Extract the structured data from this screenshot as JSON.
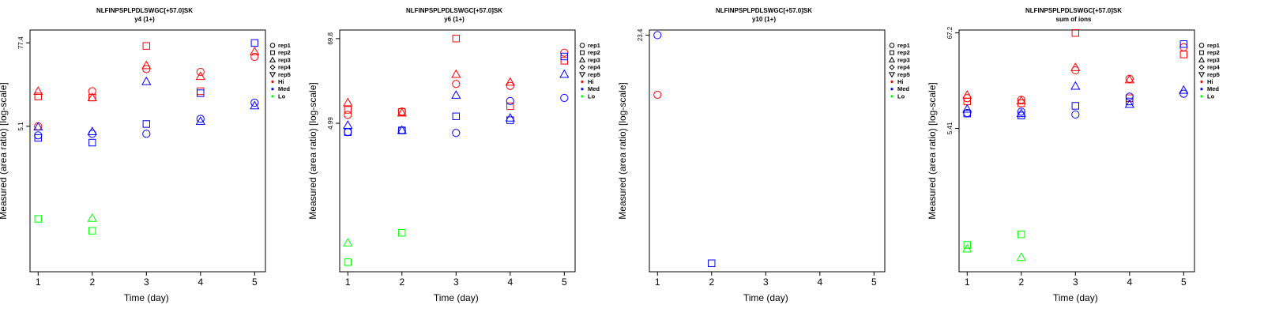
{
  "chart_data": [
    {
      "type": "scatter",
      "title": "NLFINPSPLPDLSWGC[+57.0]SK",
      "subtitle": "y4 (1+)",
      "xlabel": "Time (day)",
      "ylabel": "Measured (area ratio) [log-scale]",
      "xticks": [
        "1",
        "2",
        "3",
        "4",
        "5"
      ],
      "yticks": [
        "5.1",
        "77.4"
      ],
      "ylim_log10": [
        -1.35,
        2.07
      ],
      "grid": false,
      "legend_position": "right",
      "legend": [
        {
          "label": "rep1",
          "marker": "circle"
        },
        {
          "label": "rep2",
          "marker": "square"
        },
        {
          "label": "rep3",
          "marker": "triangle"
        },
        {
          "label": "rep4",
          "marker": "diamond"
        },
        {
          "label": "rep5",
          "marker": "triangle-down"
        },
        {
          "label": "Hi",
          "marker": "dot",
          "color": "#ff0000"
        },
        {
          "label": "Med",
          "marker": "dot",
          "color": "#0000ff"
        },
        {
          "label": "Lo",
          "marker": "dot",
          "color": "#00cc00"
        }
      ],
      "points": [
        {
          "x": 1,
          "y": 5.1,
          "group": "Hi",
          "rep": "rep1"
        },
        {
          "x": 1,
          "y": 13.5,
          "group": "Hi",
          "rep": "rep2"
        },
        {
          "x": 1,
          "y": 16,
          "group": "Hi",
          "rep": "rep3"
        },
        {
          "x": 1,
          "y": 3.8,
          "group": "Med",
          "rep": "rep1"
        },
        {
          "x": 1,
          "y": 3.5,
          "group": "Med",
          "rep": "rep2"
        },
        {
          "x": 1,
          "y": 5.0,
          "group": "Med",
          "rep": "rep3"
        },
        {
          "x": 1,
          "y": 0.25,
          "group": "Lo",
          "rep": "rep2"
        },
        {
          "x": 2,
          "y": 16,
          "group": "Hi",
          "rep": "rep1"
        },
        {
          "x": 2,
          "y": 13,
          "group": "Hi",
          "rep": "rep2"
        },
        {
          "x": 2,
          "y": 13,
          "group": "Hi",
          "rep": "rep3"
        },
        {
          "x": 2,
          "y": 4.0,
          "group": "Med",
          "rep": "rep1"
        },
        {
          "x": 2,
          "y": 3.0,
          "group": "Med",
          "rep": "rep2"
        },
        {
          "x": 2,
          "y": 4.3,
          "group": "Med",
          "rep": "rep3"
        },
        {
          "x": 2,
          "y": 0.17,
          "group": "Lo",
          "rep": "rep2"
        },
        {
          "x": 2,
          "y": 0.255,
          "group": "Lo",
          "rep": "rep3"
        },
        {
          "x": 3,
          "y": 33,
          "group": "Hi",
          "rep": "rep1"
        },
        {
          "x": 3,
          "y": 70,
          "group": "Hi",
          "rep": "rep2"
        },
        {
          "x": 3,
          "y": 37,
          "group": "Hi",
          "rep": "rep3"
        },
        {
          "x": 3,
          "y": 4.0,
          "group": "Med",
          "rep": "rep1"
        },
        {
          "x": 3,
          "y": 5.5,
          "group": "Med",
          "rep": "rep2"
        },
        {
          "x": 3,
          "y": 22,
          "group": "Med",
          "rep": "rep3"
        },
        {
          "x": 4,
          "y": 30,
          "group": "Hi",
          "rep": "rep1"
        },
        {
          "x": 4,
          "y": 16,
          "group": "Hi",
          "rep": "rep2"
        },
        {
          "x": 4,
          "y": 26,
          "group": "Hi",
          "rep": "rep3"
        },
        {
          "x": 4,
          "y": 6.5,
          "group": "Med",
          "rep": "rep1"
        },
        {
          "x": 4,
          "y": 15,
          "group": "Med",
          "rep": "rep2"
        },
        {
          "x": 4,
          "y": 6,
          "group": "Med",
          "rep": "rep3"
        },
        {
          "x": 5,
          "y": 49,
          "group": "Hi",
          "rep": "rep1"
        },
        {
          "x": 5,
          "y": 58,
          "group": "Hi",
          "rep": "rep3"
        },
        {
          "x": 5,
          "y": 11,
          "group": "Med",
          "rep": "rep1"
        },
        {
          "x": 5,
          "y": 77,
          "group": "Med",
          "rep": "rep2"
        },
        {
          "x": 5,
          "y": 10,
          "group": "Med",
          "rep": "rep3"
        }
      ]
    },
    {
      "type": "scatter",
      "title": "NLFINPSPLPDLSWGC[+57.0]SK",
      "subtitle": "y6 (1+)",
      "xlabel": "Time (day)",
      "ylabel": "Measured (area ratio) [log-scale]",
      "xticks": [
        "1",
        "2",
        "3",
        "4",
        "5"
      ],
      "yticks": [
        "4.99",
        "69.8"
      ],
      "ylim_log10": [
        -1.31,
        1.96
      ],
      "grid": false,
      "legend_position": "right",
      "legend": [
        {
          "label": "rep1",
          "marker": "circle"
        },
        {
          "label": "rep2",
          "marker": "square"
        },
        {
          "label": "rep3",
          "marker": "triangle"
        },
        {
          "label": "rep4",
          "marker": "diamond"
        },
        {
          "label": "rep5",
          "marker": "triangle-down"
        },
        {
          "label": "Hi",
          "marker": "dot",
          "color": "#ff0000"
        },
        {
          "label": "Med",
          "marker": "dot",
          "color": "#0000ff"
        },
        {
          "label": "Lo",
          "marker": "dot",
          "color": "#00cc00"
        }
      ],
      "points": [
        {
          "x": 1,
          "y": 6.5,
          "group": "Hi",
          "rep": "rep1"
        },
        {
          "x": 1,
          "y": 7.6,
          "group": "Hi",
          "rep": "rep2"
        },
        {
          "x": 1,
          "y": 9.5,
          "group": "Hi",
          "rep": "rep3"
        },
        {
          "x": 1,
          "y": 3.8,
          "group": "Med",
          "rep": "rep1"
        },
        {
          "x": 1,
          "y": 3.8,
          "group": "Med",
          "rep": "rep2"
        },
        {
          "x": 1,
          "y": 4.7,
          "group": "Med",
          "rep": "rep3"
        },
        {
          "x": 1,
          "y": 0.066,
          "group": "Lo",
          "rep": "rep2"
        },
        {
          "x": 1,
          "y": 0.12,
          "group": "Lo",
          "rep": "rep3"
        },
        {
          "x": 2,
          "y": 7.2,
          "group": "Hi",
          "rep": "rep1"
        },
        {
          "x": 2,
          "y": 7.1,
          "group": "Hi",
          "rep": "rep2"
        },
        {
          "x": 2,
          "y": 6.9,
          "group": "Hi",
          "rep": "rep3"
        },
        {
          "x": 2,
          "y": 4.0,
          "group": "Med",
          "rep": "rep1"
        },
        {
          "x": 2,
          "y": 4.0,
          "group": "Med",
          "rep": "rep2"
        },
        {
          "x": 2,
          "y": 4.0,
          "group": "Med",
          "rep": "rep3"
        },
        {
          "x": 2,
          "y": 0.165,
          "group": "Lo",
          "rep": "rep2"
        },
        {
          "x": 3,
          "y": 17,
          "group": "Hi",
          "rep": "rep1"
        },
        {
          "x": 3,
          "y": 70,
          "group": "Hi",
          "rep": "rep2"
        },
        {
          "x": 3,
          "y": 23,
          "group": "Hi",
          "rep": "rep3"
        },
        {
          "x": 3,
          "y": 3.7,
          "group": "Med",
          "rep": "rep1"
        },
        {
          "x": 3,
          "y": 6.2,
          "group": "Med",
          "rep": "rep2"
        },
        {
          "x": 3,
          "y": 12,
          "group": "Med",
          "rep": "rep3"
        },
        {
          "x": 4,
          "y": 16,
          "group": "Hi",
          "rep": "rep1"
        },
        {
          "x": 4,
          "y": 8.5,
          "group": "Hi",
          "rep": "rep2"
        },
        {
          "x": 4,
          "y": 18,
          "group": "Hi",
          "rep": "rep3"
        },
        {
          "x": 4,
          "y": 10,
          "group": "Med",
          "rep": "rep1"
        },
        {
          "x": 4,
          "y": 5.5,
          "group": "Med",
          "rep": "rep2"
        },
        {
          "x": 4,
          "y": 5.9,
          "group": "Med",
          "rep": "rep3"
        },
        {
          "x": 5,
          "y": 45,
          "group": "Hi",
          "rep": "rep1"
        },
        {
          "x": 5,
          "y": 35,
          "group": "Hi",
          "rep": "rep2"
        },
        {
          "x": 5,
          "y": 11,
          "group": "Med",
          "rep": "rep1"
        },
        {
          "x": 5,
          "y": 40,
          "group": "Med",
          "rep": "rep2"
        },
        {
          "x": 5,
          "y": 23,
          "group": "Med",
          "rep": "rep3"
        }
      ]
    },
    {
      "type": "scatter",
      "title": "NLFINPSPLPDLSWGC[+57.0]SK",
      "subtitle": "y10 (1+)",
      "xlabel": "Time (day)",
      "ylabel": "Measured (area ratio) [log-scale]",
      "xticks": [
        "1",
        "2",
        "3",
        "4",
        "5"
      ],
      "yticks": [
        "23.4"
      ],
      "ylim_log10": [
        -0.06,
        1.4
      ],
      "grid": false,
      "legend_position": "right",
      "legend": [
        {
          "label": "rep1",
          "marker": "circle"
        },
        {
          "label": "rep2",
          "marker": "square"
        },
        {
          "label": "rep3",
          "marker": "triangle"
        },
        {
          "label": "rep4",
          "marker": "diamond"
        },
        {
          "label": "rep5",
          "marker": "triangle-down"
        },
        {
          "label": "Hi",
          "marker": "dot",
          "color": "#ff0000"
        },
        {
          "label": "Med",
          "marker": "dot",
          "color": "#0000ff"
        },
        {
          "label": "Lo",
          "marker": "dot",
          "color": "#00cc00"
        }
      ],
      "points": [
        {
          "x": 1,
          "y": 23.4,
          "group": "Med",
          "rep": "rep1"
        },
        {
          "x": 1,
          "y": 10.2,
          "group": "Hi",
          "rep": "rep1"
        },
        {
          "x": 2,
          "y": 0.98,
          "group": "Med",
          "rep": "rep2"
        }
      ]
    },
    {
      "type": "scatter",
      "title": "NLFINPSPLPDLSWGC[+57.0]SK",
      "subtitle": "sum of ions",
      "xlabel": "Time (day)",
      "ylabel": "Measured (area ratio) [log-scale]",
      "xticks": [
        "1",
        "2",
        "3",
        "4",
        "5"
      ],
      "yticks": [
        "5.41",
        "67.2"
      ],
      "ylim_log10": [
        -0.91,
        1.86
      ],
      "grid": false,
      "legend_position": "right",
      "legend": [
        {
          "label": "rep1",
          "marker": "circle"
        },
        {
          "label": "rep2",
          "marker": "square"
        },
        {
          "label": "rep3",
          "marker": "triangle"
        },
        {
          "label": "rep4",
          "marker": "diamond"
        },
        {
          "label": "rep5",
          "marker": "triangle-down"
        },
        {
          "label": "Hi",
          "marker": "dot",
          "color": "#ff0000"
        },
        {
          "label": "Med",
          "marker": "dot",
          "color": "#0000ff"
        },
        {
          "label": "Lo",
          "marker": "dot",
          "color": "#00cc00"
        }
      ],
      "points": [
        {
          "x": 1,
          "y": 12,
          "group": "Hi",
          "rep": "rep1"
        },
        {
          "x": 1,
          "y": 11,
          "group": "Hi",
          "rep": "rep2"
        },
        {
          "x": 1,
          "y": 13,
          "group": "Hi",
          "rep": "rep3"
        },
        {
          "x": 1,
          "y": 8.1,
          "group": "Med",
          "rep": "rep1"
        },
        {
          "x": 1,
          "y": 8.0,
          "group": "Med",
          "rep": "rep2"
        },
        {
          "x": 1,
          "y": 9.0,
          "group": "Med",
          "rep": "rep3"
        },
        {
          "x": 1,
          "y": 0.25,
          "group": "Lo",
          "rep": "rep2"
        },
        {
          "x": 1,
          "y": 0.225,
          "group": "Lo",
          "rep": "rep3"
        },
        {
          "x": 2,
          "y": 11.5,
          "group": "Hi",
          "rep": "rep1"
        },
        {
          "x": 2,
          "y": 10.5,
          "group": "Hi",
          "rep": "rep2"
        },
        {
          "x": 2,
          "y": 11.2,
          "group": "Hi",
          "rep": "rep3"
        },
        {
          "x": 2,
          "y": 8.4,
          "group": "Med",
          "rep": "rep1"
        },
        {
          "x": 2,
          "y": 7.6,
          "group": "Med",
          "rep": "rep2"
        },
        {
          "x": 2,
          "y": 8.0,
          "group": "Med",
          "rep": "rep3"
        },
        {
          "x": 2,
          "y": 0.33,
          "group": "Lo",
          "rep": "rep2"
        },
        {
          "x": 2,
          "y": 0.18,
          "group": "Lo",
          "rep": "rep3"
        },
        {
          "x": 3,
          "y": 25,
          "group": "Hi",
          "rep": "rep1"
        },
        {
          "x": 3,
          "y": 67,
          "group": "Hi",
          "rep": "rep2"
        },
        {
          "x": 3,
          "y": 27,
          "group": "Hi",
          "rep": "rep3"
        },
        {
          "x": 3,
          "y": 7.8,
          "group": "Med",
          "rep": "rep1"
        },
        {
          "x": 3,
          "y": 9.8,
          "group": "Med",
          "rep": "rep2"
        },
        {
          "x": 3,
          "y": 16.5,
          "group": "Med",
          "rep": "rep3"
        },
        {
          "x": 4,
          "y": 20,
          "group": "Hi",
          "rep": "rep1"
        },
        {
          "x": 4,
          "y": 12,
          "group": "Hi",
          "rep": "rep2"
        },
        {
          "x": 4,
          "y": 19.5,
          "group": "Hi",
          "rep": "rep3"
        },
        {
          "x": 4,
          "y": 12.5,
          "group": "Med",
          "rep": "rep1"
        },
        {
          "x": 4,
          "y": 11,
          "group": "Med",
          "rep": "rep2"
        },
        {
          "x": 4,
          "y": 10.2,
          "group": "Med",
          "rep": "rep3"
        },
        {
          "x": 5,
          "y": 46,
          "group": "Hi",
          "rep": "rep1"
        },
        {
          "x": 5,
          "y": 38,
          "group": "Hi",
          "rep": "rep2"
        },
        {
          "x": 5,
          "y": 13.5,
          "group": "Med",
          "rep": "rep1"
        },
        {
          "x": 5,
          "y": 50,
          "group": "Med",
          "rep": "rep2"
        },
        {
          "x": 5,
          "y": 14.8,
          "group": "Med",
          "rep": "rep3"
        }
      ]
    }
  ]
}
